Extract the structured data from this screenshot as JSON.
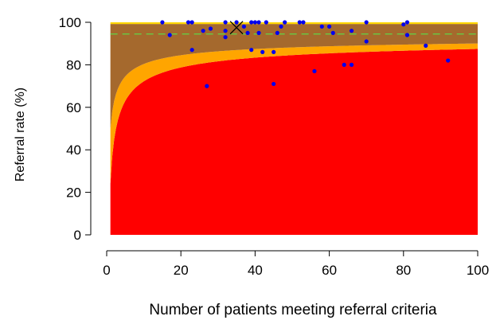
{
  "chart_data": {
    "type": "scatter",
    "title": "",
    "xlabel": "Number of patients meeting referral criteria",
    "ylabel": "Referral rate (%)",
    "xlim": [
      0,
      100
    ],
    "ylim": [
      0,
      100
    ],
    "x_ticks": [
      0,
      20,
      40,
      60,
      80,
      100
    ],
    "y_ticks": [
      0,
      20,
      40,
      60,
      80,
      100
    ],
    "grid": false,
    "legend": "none",
    "colors": {
      "points": "#0000ee",
      "red_band": "#ff0000",
      "orange_band": "#ffa500",
      "brown_band": "#a5692d",
      "yellow_band": "#ffd700",
      "target_line": "#66cc44",
      "marker": "#000000"
    },
    "reference_line": {
      "y": 94.5
    },
    "highlight_marker": {
      "shape": "x",
      "x": 35,
      "y": 97.5
    },
    "series": [
      {
        "values": [
          [
            15,
            100
          ],
          [
            17,
            94
          ],
          [
            22,
            100
          ],
          [
            23,
            100
          ],
          [
            23,
            87
          ],
          [
            26,
            96
          ],
          [
            27,
            70
          ],
          [
            28,
            97
          ],
          [
            32,
            100
          ],
          [
            32,
            96
          ],
          [
            32,
            93
          ],
          [
            35,
            100
          ],
          [
            37,
            98
          ],
          [
            38,
            95
          ],
          [
            39,
            100
          ],
          [
            39,
            87
          ],
          [
            40,
            100
          ],
          [
            41,
            100
          ],
          [
            41,
            95
          ],
          [
            42,
            86
          ],
          [
            43,
            100
          ],
          [
            45,
            86
          ],
          [
            45,
            71
          ],
          [
            46,
            95
          ],
          [
            47,
            98
          ],
          [
            48,
            100
          ],
          [
            52,
            100
          ],
          [
            53,
            100
          ],
          [
            56,
            77
          ],
          [
            58,
            98
          ],
          [
            60,
            98
          ],
          [
            61,
            95
          ],
          [
            64,
            80
          ],
          [
            66,
            80
          ],
          [
            66,
            96
          ],
          [
            70,
            100
          ],
          [
            70,
            91
          ],
          [
            80,
            99
          ],
          [
            81,
            100
          ],
          [
            81,
            94
          ],
          [
            86,
            89
          ],
          [
            92,
            82
          ]
        ]
      }
    ]
  }
}
